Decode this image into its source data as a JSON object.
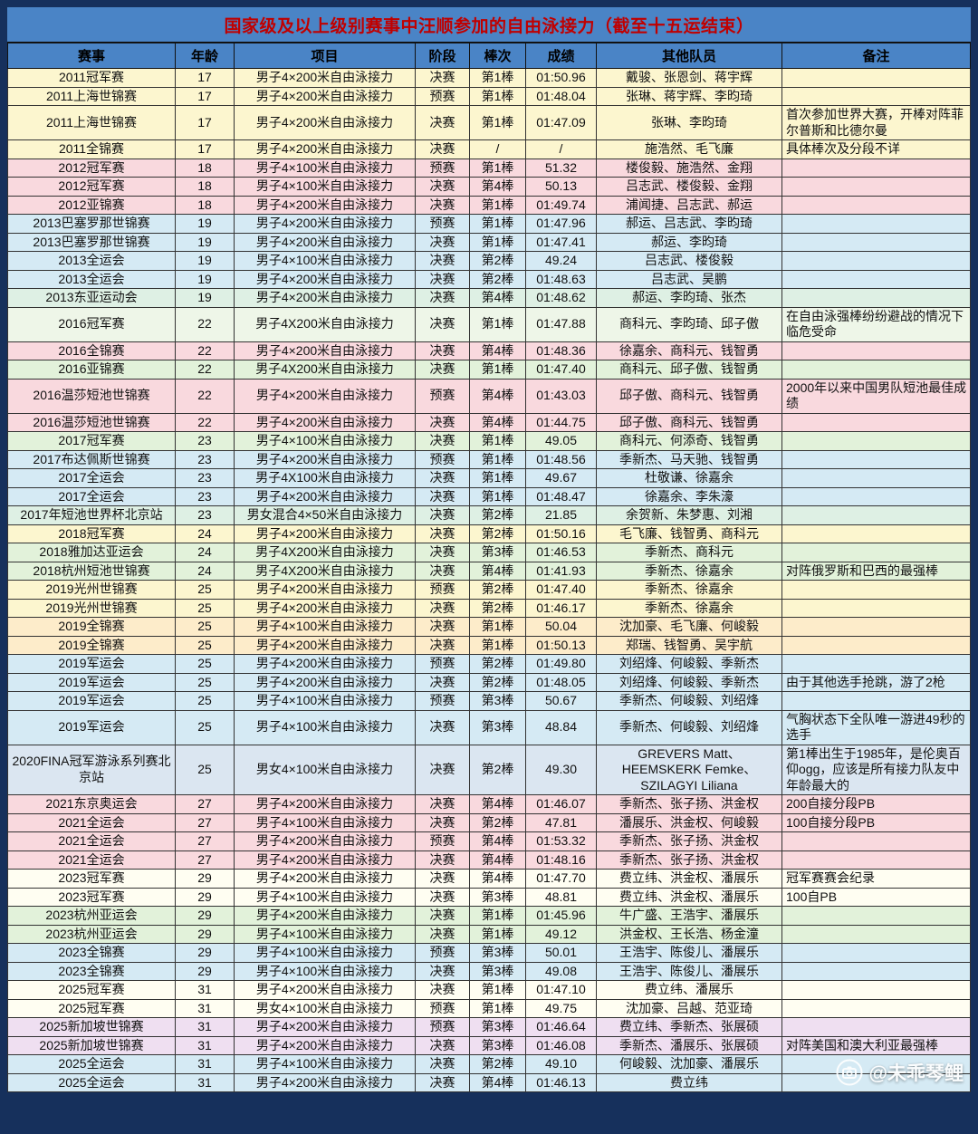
{
  "title": "国家级及以上级别赛事中汪顺参加的自由泳接力（截至十五运结束）",
  "watermark": {
    "handle": "@未乖琴鲤"
  },
  "colors": {
    "title_bar_bg": "#4a84c6",
    "title_text": "#c00000",
    "header_bg": "#4a84c6",
    "frame": "#16305c"
  },
  "table": {
    "columns": [
      {
        "key": "event",
        "label": "赛事"
      },
      {
        "key": "age",
        "label": "年龄"
      },
      {
        "key": "item",
        "label": "项目"
      },
      {
        "key": "stage",
        "label": "阶段"
      },
      {
        "key": "leg",
        "label": "棒次"
      },
      {
        "key": "result",
        "label": "成绩"
      },
      {
        "key": "teammates",
        "label": "其他队员"
      },
      {
        "key": "note",
        "label": "备注"
      }
    ],
    "rows": [
      {
        "event": "2011冠军赛",
        "age": "17",
        "item": "男子4×200米自由泳接力",
        "stage": "决赛",
        "leg": "第1棒",
        "result": "01:50.96",
        "teammates": "戴骏、张恩剑、蒋宇辉",
        "note": "",
        "color": "#fcf6cf"
      },
      {
        "event": "2011上海世锦赛",
        "age": "17",
        "item": "男子4×200米自由泳接力",
        "stage": "预赛",
        "leg": "第1棒",
        "result": "01:48.04",
        "teammates": "张琳、蒋宇辉、李昀琦",
        "note": "",
        "color": "#fcf6cf"
      },
      {
        "event": "2011上海世锦赛",
        "age": "17",
        "item": "男子4×200米自由泳接力",
        "stage": "决赛",
        "leg": "第1棒",
        "result": "01:47.09",
        "teammates": "张琳、李昀琦",
        "note": "首次参加世界大赛，开棒对阵菲尔普斯和比德尔曼",
        "color": "#fcf6cf"
      },
      {
        "event": "2011全锦赛",
        "age": "17",
        "item": "男子4×200米自由泳接力",
        "stage": "决赛",
        "leg": "/",
        "result": "/",
        "teammates": "施浩然、毛飞廉",
        "note": "具体棒次及分段不详",
        "color": "#fcf6cf"
      },
      {
        "event": "2012冠军赛",
        "age": "18",
        "item": "男子4×100米自由泳接力",
        "stage": "预赛",
        "leg": "第1棒",
        "result": "51.32",
        "teammates": "楼俊毅、施浩然、金翔",
        "note": "",
        "color": "#f9d9de"
      },
      {
        "event": "2012冠军赛",
        "age": "18",
        "item": "男子4×100米自由泳接力",
        "stage": "决赛",
        "leg": "第4棒",
        "result": "50.13",
        "teammates": "吕志武、楼俊毅、金翔",
        "note": "",
        "color": "#f9d9de"
      },
      {
        "event": "2012亚锦赛",
        "age": "18",
        "item": "男子4×200米自由泳接力",
        "stage": "决赛",
        "leg": "第1棒",
        "result": "01:49.74",
        "teammates": "浦闻捷、吕志武、郝运",
        "note": "",
        "color": "#f9d9de"
      },
      {
        "event": "2013巴塞罗那世锦赛",
        "age": "19",
        "item": "男子4×200米自由泳接力",
        "stage": "预赛",
        "leg": "第1棒",
        "result": "01:47.96",
        "teammates": "郝运、吕志武、李昀琦",
        "note": "",
        "color": "#d5eaf4"
      },
      {
        "event": "2013巴塞罗那世锦赛",
        "age": "19",
        "item": "男子4×200米自由泳接力",
        "stage": "决赛",
        "leg": "第1棒",
        "result": "01:47.41",
        "teammates": "郝运、李昀琦",
        "note": "",
        "color": "#d5eaf4"
      },
      {
        "event": "2013全运会",
        "age": "19",
        "item": "男子4×100米自由泳接力",
        "stage": "决赛",
        "leg": "第2棒",
        "result": "49.24",
        "teammates": "吕志武、楼俊毅",
        "note": "",
        "color": "#d5eaf4"
      },
      {
        "event": "2013全运会",
        "age": "19",
        "item": "男子4×200米自由泳接力",
        "stage": "决赛",
        "leg": "第2棒",
        "result": "01:48.63",
        "teammates": "吕志武、吴鹏",
        "note": "",
        "color": "#d5eaf4"
      },
      {
        "event": "2013东亚运动会",
        "age": "19",
        "item": "男子4×200米自由泳接力",
        "stage": "决赛",
        "leg": "第4棒",
        "result": "01:48.62",
        "teammates": "郝运、李昀琦、张杰",
        "note": "",
        "color": "#def0e4"
      },
      {
        "event": "2016冠军赛",
        "age": "22",
        "item": "男子4X200米自由泳接力",
        "stage": "决赛",
        "leg": "第1棒",
        "result": "01:47.88",
        "teammates": "商科元、李昀琦、邱子傲",
        "note": "在自由泳强棒纷纷避战的情况下临危受命",
        "color": "#eef6e8"
      },
      {
        "event": "2016全锦赛",
        "age": "22",
        "item": "男子4×200米自由泳接力",
        "stage": "决赛",
        "leg": "第4棒",
        "result": "01:48.36",
        "teammates": "徐嘉余、商科元、钱智勇",
        "note": "",
        "color": "#f9d9de"
      },
      {
        "event": "2016亚锦赛",
        "age": "22",
        "item": "男子4X200米自由泳接力",
        "stage": "决赛",
        "leg": "第1棒",
        "result": "01:47.40",
        "teammates": "商科元、邱子傲、钱智勇",
        "note": "",
        "color": "#e2f2da"
      },
      {
        "event": "2016温莎短池世锦赛",
        "age": "22",
        "item": "男子4×200米自由泳接力",
        "stage": "预赛",
        "leg": "第4棒",
        "result": "01:43.03",
        "teammates": "邱子傲、商科元、钱智勇",
        "note": "2000年以来中国男队短池最佳成绩",
        "color": "#f9d9de"
      },
      {
        "event": "2016温莎短池世锦赛",
        "age": "22",
        "item": "男子4×200米自由泳接力",
        "stage": "决赛",
        "leg": "第4棒",
        "result": "01:44.75",
        "teammates": "邱子傲、商科元、钱智勇",
        "note": "",
        "color": "#f9d9de"
      },
      {
        "event": "2017冠军赛",
        "age": "23",
        "item": "男子4×100米自由泳接力",
        "stage": "决赛",
        "leg": "第1棒",
        "result": "49.05",
        "teammates": "商科元、何添奇、钱智勇",
        "note": "",
        "color": "#e2f2da"
      },
      {
        "event": "2017布达佩斯世锦赛",
        "age": "23",
        "item": "男子4×200米自由泳接力",
        "stage": "预赛",
        "leg": "第1棒",
        "result": "01:48.56",
        "teammates": "季新杰、马天驰、钱智勇",
        "note": "",
        "color": "#d5eaf4"
      },
      {
        "event": "2017全运会",
        "age": "23",
        "item": "男子4X100米自由泳接力",
        "stage": "决赛",
        "leg": "第1棒",
        "result": "49.67",
        "teammates": "杜敬谦、徐嘉余",
        "note": "",
        "color": "#d5eaf4"
      },
      {
        "event": "2017全运会",
        "age": "23",
        "item": "男子4×200米自由泳接力",
        "stage": "决赛",
        "leg": "第1棒",
        "result": "01:48.47",
        "teammates": "徐嘉余、李朱濠",
        "note": "",
        "color": "#d5eaf4"
      },
      {
        "event": "2017年短池世界杯北京站",
        "age": "23",
        "item": "男女混合4×50米自由泳接力",
        "stage": "决赛",
        "leg": "第2棒",
        "result": "21.85",
        "teammates": "余贺新、朱梦惠、刘湘",
        "note": "",
        "color": "#def0e4"
      },
      {
        "event": "2018冠军赛",
        "age": "24",
        "item": "男子4×200米自由泳接力",
        "stage": "决赛",
        "leg": "第2棒",
        "result": "01:50.16",
        "teammates": "毛飞廉、钱智勇、商科元",
        "note": "",
        "color": "#fcf6cf"
      },
      {
        "event": "2018雅加达亚运会",
        "age": "24",
        "item": "男子4X200米自由泳接力",
        "stage": "决赛",
        "leg": "第3棒",
        "result": "01:46.53",
        "teammates": "季新杰、商科元",
        "note": "",
        "color": "#e2f2da"
      },
      {
        "event": "2018杭州短池世锦赛",
        "age": "24",
        "item": "男子4X200米自由泳接力",
        "stage": "决赛",
        "leg": "第4棒",
        "result": "01:41.93",
        "teammates": "季新杰、徐嘉余",
        "note": "对阵俄罗斯和巴西的最强棒",
        "color": "#e2f2da"
      },
      {
        "event": "2019光州世锦赛",
        "age": "25",
        "item": "男子4×200米自由泳接力",
        "stage": "预赛",
        "leg": "第2棒",
        "result": "01:47.40",
        "teammates": "季新杰、徐嘉余",
        "note": "",
        "color": "#fcf6cf"
      },
      {
        "event": "2019光州世锦赛",
        "age": "25",
        "item": "男子4×200米自由泳接力",
        "stage": "决赛",
        "leg": "第2棒",
        "result": "01:46.17",
        "teammates": "季新杰、徐嘉余",
        "note": "",
        "color": "#fcf6cf"
      },
      {
        "event": "2019全锦赛",
        "age": "25",
        "item": "男子4×100米自由泳接力",
        "stage": "决赛",
        "leg": "第1棒",
        "result": "50.04",
        "teammates": "沈加豪、毛飞廉、何峻毅",
        "note": "",
        "color": "#fdecca"
      },
      {
        "event": "2019全锦赛",
        "age": "25",
        "item": "男子4×200米自由泳接力",
        "stage": "决赛",
        "leg": "第1棒",
        "result": "01:50.13",
        "teammates": "郑瑞、钱智勇、吴宇航",
        "note": "",
        "color": "#fdecca"
      },
      {
        "event": "2019军运会",
        "age": "25",
        "item": "男子4×200米自由泳接力",
        "stage": "预赛",
        "leg": "第2棒",
        "result": "01:49.80",
        "teammates": "刘绍烽、何峻毅、季新杰",
        "note": "",
        "color": "#d5eaf4"
      },
      {
        "event": "2019军运会",
        "age": "25",
        "item": "男子4×200米自由泳接力",
        "stage": "决赛",
        "leg": "第2棒",
        "result": "01:48.05",
        "teammates": "刘绍烽、何峻毅、季新杰",
        "note": "由于其他选手抢跳，游了2枪",
        "color": "#d5eaf4"
      },
      {
        "event": "2019军运会",
        "age": "25",
        "item": "男子4×100米自由泳接力",
        "stage": "预赛",
        "leg": "第3棒",
        "result": "50.67",
        "teammates": "季新杰、何峻毅、刘绍烽",
        "note": "",
        "color": "#d5eaf4"
      },
      {
        "event": "2019军运会",
        "age": "25",
        "item": "男子4×100米自由泳接力",
        "stage": "决赛",
        "leg": "第3棒",
        "result": "48.84",
        "teammates": "季新杰、何峻毅、刘绍烽",
        "note": "气胸状态下全队唯一游进49秒的选手",
        "color": "#d5eaf4"
      },
      {
        "event": "2020FINA冠军游泳系列赛北京站",
        "age": "25",
        "item": "男女4×100米自由泳接力",
        "stage": "决赛",
        "leg": "第2棒",
        "result": "49.30",
        "teammates": "GREVERS Matt、HEEMSKERK Femke、SZILAGYI Liliana",
        "note": "第1棒出生于1985年，是伦奥百仰ogg，应该是所有接力队友中年龄最大的",
        "color": "#dbe6f1"
      },
      {
        "event": "2021东京奥运会",
        "age": "27",
        "item": "男子4×200米自由泳接力",
        "stage": "决赛",
        "leg": "第4棒",
        "result": "01:46.07",
        "teammates": "季新杰、张子扬、洪金权",
        "note": "200自接分段PB",
        "color": "#f9d9de"
      },
      {
        "event": "2021全运会",
        "age": "27",
        "item": "男子4×100米自由泳接力",
        "stage": "决赛",
        "leg": "第2棒",
        "result": "47.81",
        "teammates": "潘展乐、洪金权、何峻毅",
        "note": "100自接分段PB",
        "color": "#f9d9de"
      },
      {
        "event": "2021全运会",
        "age": "27",
        "item": "男子4×200米自由泳接力",
        "stage": "预赛",
        "leg": "第4棒",
        "result": "01:53.32",
        "teammates": "季新杰、张子扬、洪金权",
        "note": "",
        "color": "#f9d9de"
      },
      {
        "event": "2021全运会",
        "age": "27",
        "item": "男子4×200米自由泳接力",
        "stage": "决赛",
        "leg": "第4棒",
        "result": "01:48.16",
        "teammates": "季新杰、张子扬、洪金权",
        "note": "",
        "color": "#f9d9de"
      },
      {
        "event": "2023冠军赛",
        "age": "29",
        "item": "男子4×200米自由泳接力",
        "stage": "决赛",
        "leg": "第4棒",
        "result": "01:47.70",
        "teammates": "费立纬、洪金权、潘展乐",
        "note": "冠军赛赛会纪录",
        "color": "#fffef2"
      },
      {
        "event": "2023冠军赛",
        "age": "29",
        "item": "男子4×100米自由泳接力",
        "stage": "决赛",
        "leg": "第3棒",
        "result": "48.81",
        "teammates": "费立纬、洪金权、潘展乐",
        "note": "100自PB",
        "color": "#fffef2"
      },
      {
        "event": "2023杭州亚运会",
        "age": "29",
        "item": "男子4×200米自由泳接力",
        "stage": "决赛",
        "leg": "第1棒",
        "result": "01:45.96",
        "teammates": "牛广盛、王浩宇、潘展乐",
        "note": "",
        "color": "#e2f2da"
      },
      {
        "event": "2023杭州亚运会",
        "age": "29",
        "item": "男子4×100米自由泳接力",
        "stage": "决赛",
        "leg": "第1棒",
        "result": "49.12",
        "teammates": "洪金权、王长浩、杨金潼",
        "note": "",
        "color": "#e2f2da"
      },
      {
        "event": "2023全锦赛",
        "age": "29",
        "item": "男子4×100米自由泳接力",
        "stage": "预赛",
        "leg": "第3棒",
        "result": "50.01",
        "teammates": "王浩宇、陈俊儿、潘展乐",
        "note": "",
        "color": "#d5eaf4"
      },
      {
        "event": "2023全锦赛",
        "age": "29",
        "item": "男子4×100米自由泳接力",
        "stage": "决赛",
        "leg": "第3棒",
        "result": "49.08",
        "teammates": "王浩宇、陈俊儿、潘展乐",
        "note": "",
        "color": "#d5eaf4"
      },
      {
        "event": "2025冠军赛",
        "age": "31",
        "item": "男子4×200米自由泳接力",
        "stage": "决赛",
        "leg": "第1棒",
        "result": "01:47.10",
        "teammates": "费立纬、潘展乐",
        "note": "",
        "color": "#fffef2"
      },
      {
        "event": "2025冠军赛",
        "age": "31",
        "item": "男女4×100米自由泳接力",
        "stage": "预赛",
        "leg": "第1棒",
        "result": "49.75",
        "teammates": "沈加豪、吕越、范亚琦",
        "note": "",
        "color": "#fffef2"
      },
      {
        "event": "2025新加坡世锦赛",
        "age": "31",
        "item": "男子4×200米自由泳接力",
        "stage": "预赛",
        "leg": "第3棒",
        "result": "01:46.64",
        "teammates": "费立纬、季新杰、张展硕",
        "note": "",
        "color": "#efdff1"
      },
      {
        "event": "2025新加坡世锦赛",
        "age": "31",
        "item": "男子4×200米自由泳接力",
        "stage": "决赛",
        "leg": "第3棒",
        "result": "01:46.08",
        "teammates": "季新杰、潘展乐、张展硕",
        "note": "对阵美国和澳大利亚最强棒",
        "color": "#efdff1"
      },
      {
        "event": "2025全运会",
        "age": "31",
        "item": "男子4×100米自由泳接力",
        "stage": "决赛",
        "leg": "第2棒",
        "result": "49.10",
        "teammates": "何峻毅、沈加豪、潘展乐",
        "note": "",
        "color": "#d5eaf4"
      },
      {
        "event": "2025全运会",
        "age": "31",
        "item": "男子4×200米自由泳接力",
        "stage": "决赛",
        "leg": "第4棒",
        "result": "01:46.13",
        "teammates": "费立纬",
        "note": "",
        "color": "#d5eaf4"
      }
    ]
  }
}
